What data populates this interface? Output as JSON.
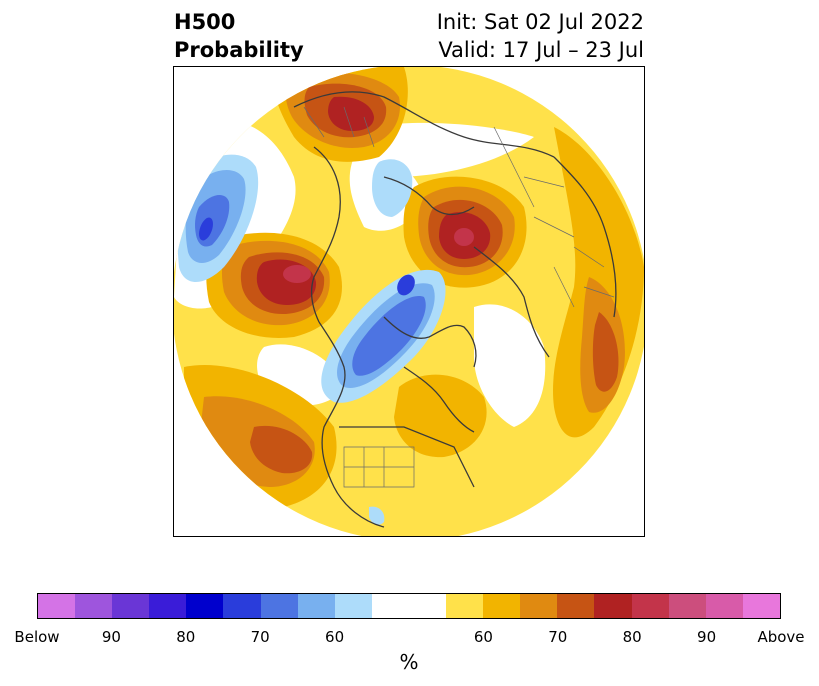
{
  "title": {
    "line1": "H500",
    "line2": "Probability"
  },
  "subtitle": {
    "init": "Init: Sat 02 Jul 2022",
    "valid": "Valid: 17 Jul – 23 Jul"
  },
  "map": {
    "projection": "north-polar-stereographic",
    "field": "500 hPa height anomaly probability",
    "regions": [
      {
        "name": "western-siberia-high",
        "category": "above",
        "peak_percent": 80
      },
      {
        "name": "alaska-bering-high",
        "category": "above",
        "peak_percent": 85
      },
      {
        "name": "europe-high",
        "category": "above",
        "peak_percent": 80
      },
      {
        "name": "north-pacific-high",
        "category": "above",
        "peak_percent": 75
      },
      {
        "name": "arctic-canada-low",
        "category": "below",
        "peak_percent": 75
      },
      {
        "name": "east-asia-low",
        "category": "below",
        "peak_percent": 70
      },
      {
        "name": "central-us-high",
        "category": "above",
        "peak_percent": 60
      }
    ]
  },
  "colorbar": {
    "segments": [
      "#d473e6",
      "#9e55dd",
      "#6a36d6",
      "#3a1cd8",
      "#0000cd",
      "#2a3ddb",
      "#4d74e2",
      "#78b0ef",
      "#addcfa",
      "#ffffff",
      "#ffffff",
      "#ffe14a",
      "#f2b400",
      "#e08a11",
      "#c65414",
      "#b02222",
      "#c3344a",
      "#cc4e7d",
      "#d85ba9",
      "#e877dc"
    ],
    "ticks": [
      "Below",
      "90",
      "80",
      "70",
      "60",
      "60",
      "70",
      "80",
      "90",
      "Above"
    ],
    "unit": "%"
  }
}
